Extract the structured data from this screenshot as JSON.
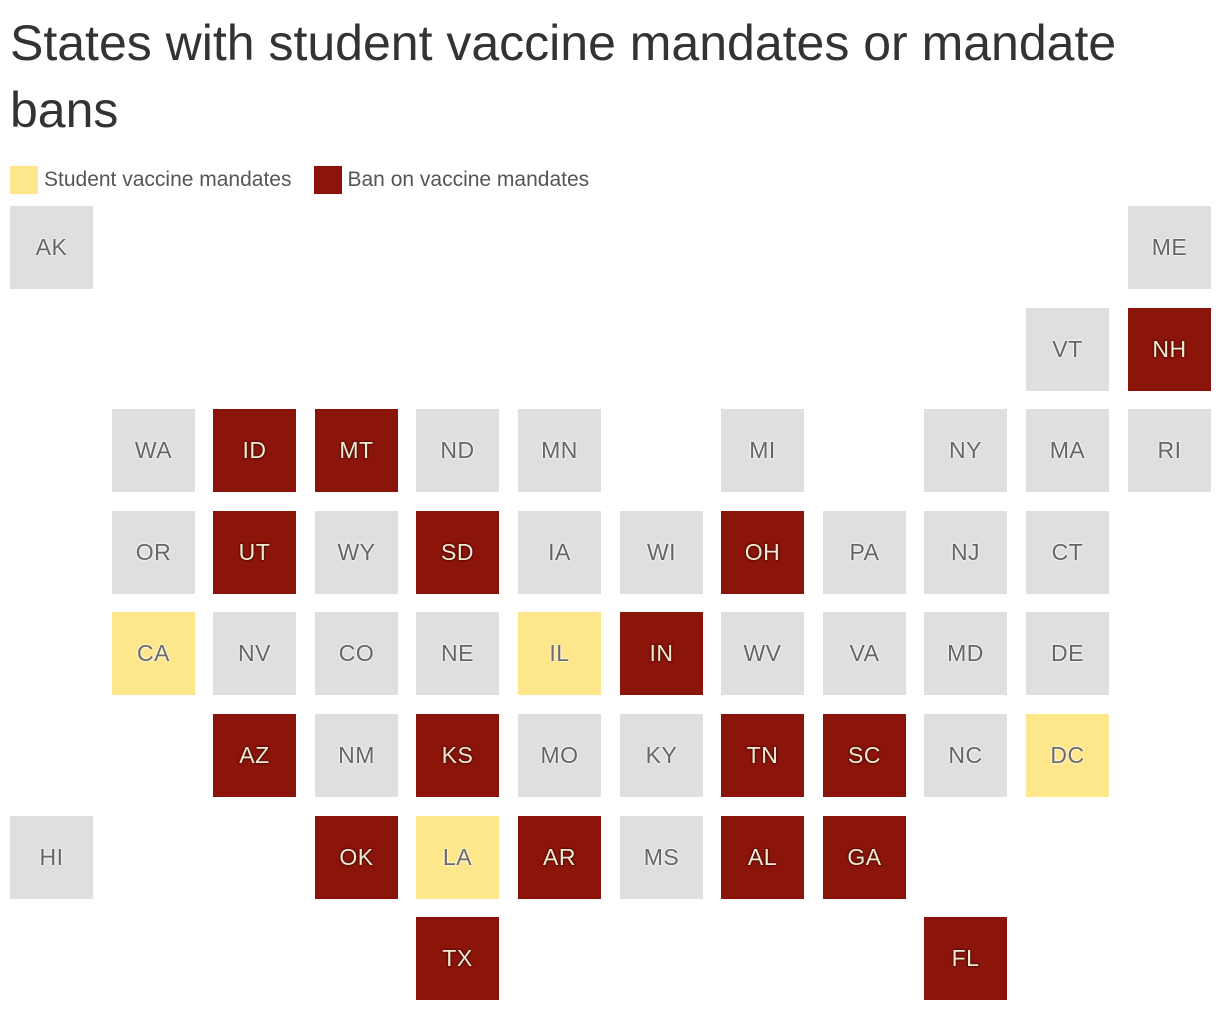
{
  "title": "States with student vaccine mandates or mandate bans",
  "legend": [
    {
      "label": "Student vaccine mandates",
      "category": "mandate"
    },
    {
      "label": "Ban on vaccine mandates",
      "category": "ban"
    }
  ],
  "colors": {
    "mandate": "#fee78a",
    "ban": "#8b140b",
    "none": "#dedfe0"
  },
  "states": [
    {
      "abbr": "AK",
      "row": 0,
      "col": 0,
      "category": "none"
    },
    {
      "abbr": "ME",
      "row": 0,
      "col": 11,
      "category": "none"
    },
    {
      "abbr": "VT",
      "row": 1,
      "col": 10,
      "category": "none"
    },
    {
      "abbr": "NH",
      "row": 1,
      "col": 11,
      "category": "ban"
    },
    {
      "abbr": "WA",
      "row": 2,
      "col": 1,
      "category": "none"
    },
    {
      "abbr": "ID",
      "row": 2,
      "col": 2,
      "category": "ban"
    },
    {
      "abbr": "MT",
      "row": 2,
      "col": 3,
      "category": "ban"
    },
    {
      "abbr": "ND",
      "row": 2,
      "col": 4,
      "category": "none"
    },
    {
      "abbr": "MN",
      "row": 2,
      "col": 5,
      "category": "none"
    },
    {
      "abbr": "MI",
      "row": 2,
      "col": 7,
      "category": "none"
    },
    {
      "abbr": "NY",
      "row": 2,
      "col": 9,
      "category": "none"
    },
    {
      "abbr": "MA",
      "row": 2,
      "col": 10,
      "category": "none"
    },
    {
      "abbr": "RI",
      "row": 2,
      "col": 11,
      "category": "none"
    },
    {
      "abbr": "OR",
      "row": 3,
      "col": 1,
      "category": "none"
    },
    {
      "abbr": "UT",
      "row": 3,
      "col": 2,
      "category": "ban"
    },
    {
      "abbr": "WY",
      "row": 3,
      "col": 3,
      "category": "none"
    },
    {
      "abbr": "SD",
      "row": 3,
      "col": 4,
      "category": "ban"
    },
    {
      "abbr": "IA",
      "row": 3,
      "col": 5,
      "category": "none"
    },
    {
      "abbr": "WI",
      "row": 3,
      "col": 6,
      "category": "none"
    },
    {
      "abbr": "OH",
      "row": 3,
      "col": 7,
      "category": "ban"
    },
    {
      "abbr": "PA",
      "row": 3,
      "col": 8,
      "category": "none"
    },
    {
      "abbr": "NJ",
      "row": 3,
      "col": 9,
      "category": "none"
    },
    {
      "abbr": "CT",
      "row": 3,
      "col": 10,
      "category": "none"
    },
    {
      "abbr": "CA",
      "row": 4,
      "col": 1,
      "category": "mandate"
    },
    {
      "abbr": "NV",
      "row": 4,
      "col": 2,
      "category": "none"
    },
    {
      "abbr": "CO",
      "row": 4,
      "col": 3,
      "category": "none"
    },
    {
      "abbr": "NE",
      "row": 4,
      "col": 4,
      "category": "none"
    },
    {
      "abbr": "IL",
      "row": 4,
      "col": 5,
      "category": "mandate"
    },
    {
      "abbr": "IN",
      "row": 4,
      "col": 6,
      "category": "ban"
    },
    {
      "abbr": "WV",
      "row": 4,
      "col": 7,
      "category": "none"
    },
    {
      "abbr": "VA",
      "row": 4,
      "col": 8,
      "category": "none"
    },
    {
      "abbr": "MD",
      "row": 4,
      "col": 9,
      "category": "none"
    },
    {
      "abbr": "DE",
      "row": 4,
      "col": 10,
      "category": "none"
    },
    {
      "abbr": "AZ",
      "row": 5,
      "col": 2,
      "category": "ban"
    },
    {
      "abbr": "NM",
      "row": 5,
      "col": 3,
      "category": "none"
    },
    {
      "abbr": "KS",
      "row": 5,
      "col": 4,
      "category": "ban"
    },
    {
      "abbr": "MO",
      "row": 5,
      "col": 5,
      "category": "none"
    },
    {
      "abbr": "KY",
      "row": 5,
      "col": 6,
      "category": "none"
    },
    {
      "abbr": "TN",
      "row": 5,
      "col": 7,
      "category": "ban"
    },
    {
      "abbr": "SC",
      "row": 5,
      "col": 8,
      "category": "ban"
    },
    {
      "abbr": "NC",
      "row": 5,
      "col": 9,
      "category": "none"
    },
    {
      "abbr": "DC",
      "row": 5,
      "col": 10,
      "category": "mandate"
    },
    {
      "abbr": "HI",
      "row": 6,
      "col": 0,
      "category": "none"
    },
    {
      "abbr": "OK",
      "row": 6,
      "col": 3,
      "category": "ban"
    },
    {
      "abbr": "LA",
      "row": 6,
      "col": 4,
      "category": "mandate"
    },
    {
      "abbr": "AR",
      "row": 6,
      "col": 5,
      "category": "ban"
    },
    {
      "abbr": "MS",
      "row": 6,
      "col": 6,
      "category": "none"
    },
    {
      "abbr": "AL",
      "row": 6,
      "col": 7,
      "category": "ban"
    },
    {
      "abbr": "GA",
      "row": 6,
      "col": 8,
      "category": "ban"
    },
    {
      "abbr": "TX",
      "row": 7,
      "col": 4,
      "category": "ban"
    },
    {
      "abbr": "FL",
      "row": 7,
      "col": 9,
      "category": "ban"
    }
  ]
}
